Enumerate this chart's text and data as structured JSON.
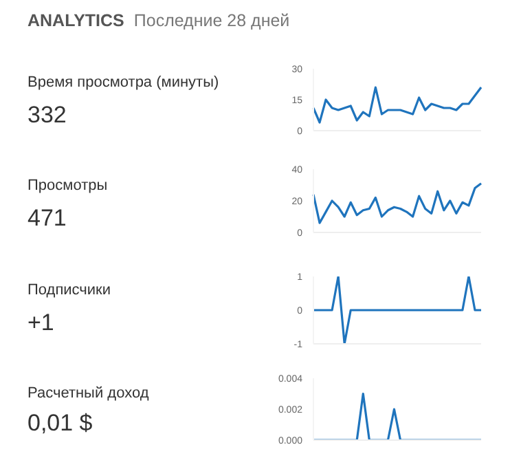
{
  "chart_data": [
    {
      "type": "line",
      "subtitle": "Последние 28 дней",
      "annotations": [
        "ANALYTICS",
        "Время просмотра (минуты)",
        "332"
      ],
      "categories": [
        null,
        null,
        null,
        null,
        null,
        null,
        null,
        null,
        null,
        null,
        null,
        null,
        null,
        null,
        null,
        null,
        null,
        null,
        null,
        null,
        null,
        null,
        null,
        null,
        null,
        null,
        null,
        null
      ],
      "series": [
        {
          "color": "#1f74bd",
          "values": [
            11,
            4,
            15,
            11,
            10,
            11,
            12,
            5,
            9,
            7,
            21,
            8,
            10,
            10,
            10,
            9,
            8,
            16,
            10,
            13,
            12,
            11,
            11,
            10,
            13,
            13,
            17,
            21
          ]
        }
      ],
      "ylim": [
        0,
        30
      ],
      "yticks": [
        0,
        15,
        30
      ],
      "tick_labels": "y",
      "marker": "none",
      "line_style": "solid",
      "grid": false,
      "legend": false
    },
    {
      "type": "line",
      "annotations": [
        "Просмотры",
        "471"
      ],
      "categories": [
        null,
        null,
        null,
        null,
        null,
        null,
        null,
        null,
        null,
        null,
        null,
        null,
        null,
        null,
        null,
        null,
        null,
        null,
        null,
        null,
        null,
        null,
        null,
        null,
        null,
        null,
        null,
        null
      ],
      "series": [
        {
          "color": "#1f74bd",
          "values": [
            24,
            6,
            13,
            20,
            16,
            10,
            19,
            11,
            14,
            15,
            22,
            10,
            14,
            16,
            15,
            13,
            10,
            23,
            15,
            12,
            26,
            14,
            20,
            12,
            19,
            17,
            28,
            31
          ]
        }
      ],
      "ylim": [
        0,
        40
      ],
      "yticks": [
        0,
        20,
        40
      ],
      "tick_labels": "y",
      "marker": "none",
      "line_style": "solid",
      "grid": false,
      "legend": false
    },
    {
      "type": "line",
      "annotations": [
        "Подписчики",
        "+1"
      ],
      "categories": [
        null,
        null,
        null,
        null,
        null,
        null,
        null,
        null,
        null,
        null,
        null,
        null,
        null,
        null,
        null,
        null,
        null,
        null,
        null,
        null,
        null,
        null,
        null,
        null,
        null,
        null,
        null,
        null
      ],
      "series": [
        {
          "color": "#1f74bd",
          "values": [
            0,
            0,
            0,
            0,
            1,
            -1,
            0,
            0,
            0,
            0,
            0,
            0,
            0,
            0,
            0,
            0,
            0,
            0,
            0,
            0,
            0,
            0,
            0,
            0,
            0,
            1,
            0,
            0
          ]
        }
      ],
      "ylim": [
        -1,
        1
      ],
      "yticks": [
        -1,
        0,
        1
      ],
      "tick_labels": "y",
      "marker": "none",
      "line_style": "solid",
      "grid": false,
      "legend": false
    },
    {
      "type": "line",
      "annotations": [
        "Расчетный доход",
        "0,01 $"
      ],
      "categories": [
        null,
        null,
        null,
        null,
        null,
        null,
        null,
        null,
        null,
        null,
        null,
        null,
        null,
        null,
        null,
        null,
        null,
        null,
        null,
        null,
        null,
        null,
        null,
        null,
        null,
        null,
        null,
        null
      ],
      "series": [
        {
          "color": "#1f74bd",
          "values": [
            0,
            0,
            0,
            0,
            0,
            0,
            0,
            0,
            0.003,
            0,
            0,
            0,
            0,
            0.002,
            0,
            0,
            0,
            0,
            0,
            0,
            0,
            0,
            0,
            0,
            0,
            0,
            0,
            0
          ]
        }
      ],
      "ylim": [
        0,
        0.004
      ],
      "yticks": [
        {
          "value": 0,
          "label": "0.000"
        },
        {
          "value": 0.002,
          "label": "0.002"
        },
        {
          "value": 0.004,
          "label": "0.004"
        }
      ],
      "tick_labels": "y",
      "marker": "none",
      "line_style": "solid",
      "grid": false,
      "legend": false
    }
  ]
}
